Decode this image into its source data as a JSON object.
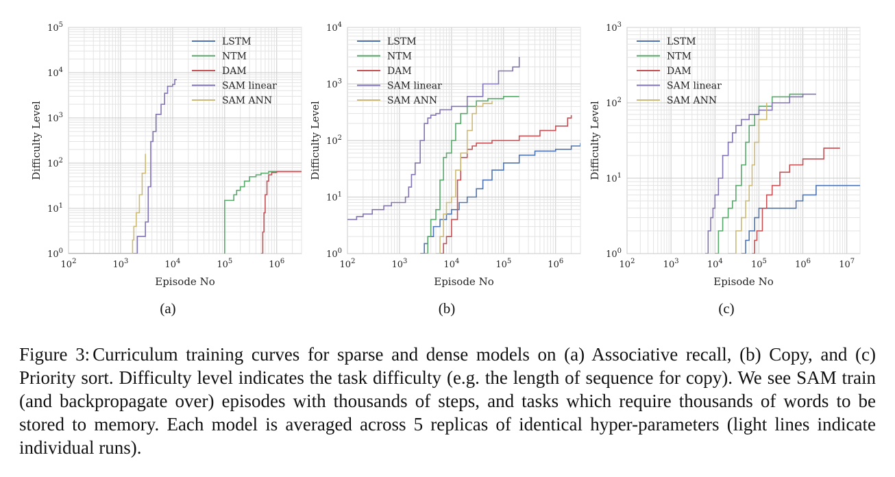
{
  "chart_data": [
    {
      "type": "line",
      "panel_label": "(a)",
      "xlabel": "Episode No",
      "ylabel": "Difficulty Level",
      "x_scale": "log",
      "y_scale": "log",
      "xlim": [
        100,
        3000000
      ],
      "ylim": [
        1,
        100000
      ],
      "x_ticks": [
        100,
        1000,
        10000,
        100000,
        1000000
      ],
      "x_tick_labels": [
        "10^2",
        "10^3",
        "10^4",
        "10^5",
        "10^6"
      ],
      "y_ticks": [
        1,
        10,
        100,
        1000,
        10000,
        100000
      ],
      "y_tick_labels": [
        "10^0",
        "10^1",
        "10^2",
        "10^3",
        "10^4",
        "10^5"
      ],
      "grid": true,
      "legend_position": "top-right",
      "series": [
        {
          "name": "LSTM",
          "color": "#4c72b0",
          "x": [],
          "y": []
        },
        {
          "name": "NTM",
          "color": "#55a868",
          "x": [
            100000,
            100000,
            110000,
            150000,
            170000,
            200000,
            240000,
            300000,
            400000,
            500000,
            700000,
            1000000,
            3000000
          ],
          "y": [
            1,
            15,
            15,
            20,
            25,
            30,
            40,
            50,
            55,
            60,
            65,
            65,
            65
          ]
        },
        {
          "name": "DAM",
          "color": "#c44e52",
          "x": [
            500000,
            540000,
            570000,
            600000,
            650000,
            700000,
            800000,
            1000000,
            3000000
          ],
          "y": [
            1,
            3,
            8,
            20,
            40,
            55,
            62,
            65,
            65
          ]
        },
        {
          "name": "SAM linear",
          "color": "#8172b2",
          "x": [
            100,
            1900,
            2100,
            2800,
            3000,
            3400,
            3800,
            4200,
            4800,
            6000,
            7000,
            8000,
            10000,
            11000,
            12000
          ],
          "y": [
            1,
            1,
            2.4,
            2.4,
            5,
            30,
            300,
            500,
            1200,
            2000,
            3500,
            5000,
            5500,
            7000,
            7000
          ]
        },
        {
          "name": "SAM ANN",
          "color": "#ccb974",
          "x": [
            100,
            1600,
            1700,
            1800,
            2000,
            2300,
            2600,
            3000
          ],
          "y": [
            1,
            1,
            2,
            4,
            8,
            20,
            60,
            160
          ]
        }
      ]
    },
    {
      "type": "line",
      "panel_label": "(b)",
      "xlabel": "Episode No",
      "ylabel": "Difficulty Level",
      "x_scale": "log",
      "y_scale": "log",
      "xlim": [
        100,
        3000000
      ],
      "ylim": [
        1,
        10000
      ],
      "x_ticks": [
        100,
        1000,
        10000,
        100000,
        1000000
      ],
      "x_tick_labels": [
        "10^2",
        "10^3",
        "10^4",
        "10^5",
        "10^6"
      ],
      "y_ticks": [
        1,
        10,
        100,
        1000,
        10000
      ],
      "y_tick_labels": [
        "10^0",
        "10^1",
        "10^2",
        "10^3",
        "10^4"
      ],
      "grid": true,
      "legend_position": "top-left",
      "series": [
        {
          "name": "LSTM",
          "color": "#4c72b0",
          "x": [
            2500,
            3000,
            3500,
            4500,
            6000,
            8000,
            10000,
            14000,
            20000,
            30000,
            40000,
            60000,
            100000,
            200000,
            400000,
            1000000,
            2000000,
            3000000
          ],
          "y": [
            1,
            1.5,
            2,
            3,
            4,
            5,
            6,
            8,
            10,
            14,
            20,
            30,
            40,
            55,
            65,
            70,
            80,
            90
          ]
        },
        {
          "name": "NTM",
          "color": "#55a868",
          "x": [
            3000,
            3500,
            4000,
            5000,
            6000,
            7000,
            8000,
            10000,
            12000,
            15000,
            20000,
            30000,
            50000,
            100000,
            200000
          ],
          "y": [
            1,
            2,
            4,
            6,
            20,
            50,
            60,
            100,
            200,
            300,
            400,
            500,
            550,
            600,
            600
          ]
        },
        {
          "name": "DAM",
          "color": "#c44e52",
          "x": [
            6000,
            7000,
            8000,
            10000,
            13000,
            15000,
            20000,
            25000,
            30000,
            60000,
            200000,
            500000,
            1000000,
            1700000,
            2000000
          ],
          "y": [
            1,
            1.5,
            2,
            4,
            20,
            50,
            70,
            80,
            90,
            100,
            120,
            150,
            180,
            250,
            280
          ]
        },
        {
          "name": "SAM linear",
          "color": "#8172b2",
          "x": [
            100,
            150,
            200,
            300,
            500,
            700,
            1000,
            1300,
            1500,
            1700,
            2000,
            2500,
            3000,
            3500,
            4000,
            5000,
            6000,
            10000,
            20000,
            40000,
            80000,
            150000,
            200000
          ],
          "y": [
            4,
            4.5,
            5,
            6,
            7,
            8,
            8,
            10,
            15,
            25,
            40,
            100,
            200,
            250,
            280,
            300,
            350,
            400,
            600,
            1000,
            1700,
            2000,
            3000
          ]
        },
        {
          "name": "SAM ANN",
          "color": "#ccb974",
          "x": [
            5000,
            6000,
            7000,
            8000,
            10000,
            12000,
            15000,
            20000,
            25000,
            30000,
            40000,
            60000
          ],
          "y": [
            1,
            2,
            5,
            8,
            10,
            30,
            60,
            150,
            300,
            400,
            450,
            500
          ]
        }
      ]
    },
    {
      "type": "line",
      "panel_label": "(c)",
      "xlabel": "Episode No",
      "ylabel": "Difficulty Level",
      "x_scale": "log",
      "y_scale": "log",
      "xlim": [
        100,
        20000000
      ],
      "ylim": [
        1,
        1000
      ],
      "x_ticks": [
        100,
        1000,
        10000,
        100000,
        1000000,
        10000000
      ],
      "x_tick_labels": [
        "10^2",
        "10^3",
        "10^4",
        "10^5",
        "10^6",
        "10^7"
      ],
      "y_ticks": [
        1,
        10,
        100,
        1000
      ],
      "y_tick_labels": [
        "10^0",
        "10^1",
        "10^2",
        "10^3"
      ],
      "grid": true,
      "legend_position": "top-left",
      "series": [
        {
          "name": "LSTM",
          "color": "#4c72b0",
          "x": [
            40000,
            50000,
            60000,
            80000,
            100000,
            150000,
            200000,
            400000,
            700000,
            1000000,
            2000000,
            20000000
          ],
          "y": [
            1,
            1.5,
            2,
            3,
            4,
            4,
            4,
            4,
            5,
            6,
            8,
            8
          ]
        },
        {
          "name": "NTM",
          "color": "#55a868",
          "x": [
            10000,
            12000,
            15000,
            20000,
            25000,
            30000,
            40000,
            50000,
            60000,
            80000,
            100000,
            200000,
            500000,
            1000000
          ],
          "y": [
            1,
            2,
            3,
            4,
            5,
            8,
            15,
            30,
            50,
            70,
            90,
            120,
            130,
            130
          ]
        },
        {
          "name": "DAM",
          "color": "#c44e52",
          "x": [
            70000,
            80000,
            90000,
            100000,
            120000,
            150000,
            200000,
            300000,
            500000,
            1000000,
            3000000,
            7000000
          ],
          "y": [
            1,
            1.5,
            2,
            2,
            4,
            6,
            8,
            12,
            15,
            18,
            25,
            25
          ]
        },
        {
          "name": "SAM linear",
          "color": "#8172b2",
          "x": [
            6000,
            7000,
            8000,
            9000,
            10000,
            12000,
            15000,
            20000,
            25000,
            30000,
            40000,
            60000,
            100000,
            200000,
            500000,
            1000000,
            2000000
          ],
          "y": [
            1,
            2,
            3,
            4,
            6,
            10,
            20,
            30,
            40,
            50,
            60,
            70,
            80,
            100,
            120,
            130,
            130
          ]
        },
        {
          "name": "SAM ANN",
          "color": "#ccb974",
          "x": [
            20000,
            30000,
            40000,
            50000,
            60000,
            70000,
            80000,
            100000,
            150000
          ],
          "y": [
            1,
            2,
            3,
            5,
            8,
            15,
            30,
            60,
            100
          ]
        }
      ]
    }
  ],
  "caption": {
    "label": "Figure 3:",
    "text": "Curriculum training curves for sparse and dense models on (a) Associative recall, (b) Copy, and (c) Priority sort. Difficulty level indicates the task difficulty (e.g. the length of sequence for copy). We see SAM train (and backpropagate over) episodes with thousands of steps, and tasks which require thousands of words to be stored to memory. Each model is averaged across 5 replicas of identical hyper-parameters (light lines indicate individual runs)."
  }
}
